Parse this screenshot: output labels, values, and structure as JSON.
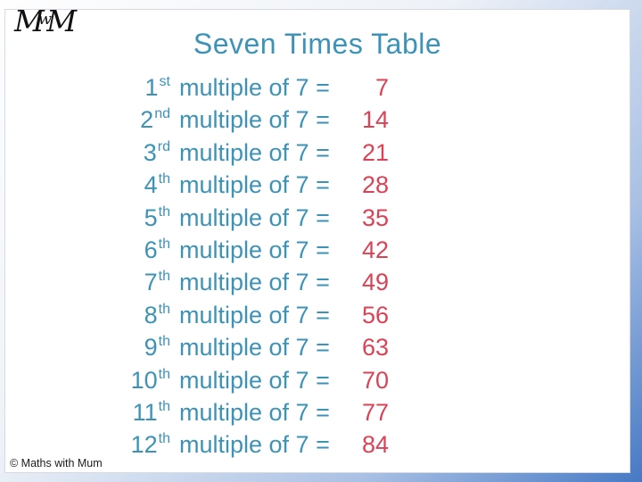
{
  "colors": {
    "teal": "#3c93b7",
    "red": "#da4355",
    "frame_blue": "#4679c4"
  },
  "logo": {
    "part1": "M",
    "part2": "w",
    "part3": "M"
  },
  "title": "Seven Times Table",
  "table": {
    "rows": [
      {
        "ordinal": "1",
        "suffix": "st",
        "label": "multiple of 7 =",
        "value": "7"
      },
      {
        "ordinal": "2",
        "suffix": "nd",
        "label": "multiple of 7 =",
        "value": "14"
      },
      {
        "ordinal": "3",
        "suffix": "rd",
        "label": "multiple of 7 =",
        "value": "21"
      },
      {
        "ordinal": "4",
        "suffix": "th",
        "label": "multiple of 7 =",
        "value": "28"
      },
      {
        "ordinal": "5",
        "suffix": "th",
        "label": "multiple of 7 =",
        "value": "35"
      },
      {
        "ordinal": "6",
        "suffix": "th",
        "label": "multiple of 7 =",
        "value": "42"
      },
      {
        "ordinal": "7",
        "suffix": "th",
        "label": "multiple of 7 =",
        "value": "49"
      },
      {
        "ordinal": "8",
        "suffix": "th",
        "label": "multiple of 7 =",
        "value": "56"
      },
      {
        "ordinal": "9",
        "suffix": "th",
        "label": "multiple of 7 =",
        "value": "63"
      },
      {
        "ordinal": "10",
        "suffix": "th",
        "label": "multiple of 7 =",
        "value": "70"
      },
      {
        "ordinal": "11",
        "suffix": "th",
        "label": "multiple of 7 =",
        "value": "77"
      },
      {
        "ordinal": "12",
        "suffix": "th",
        "label": "multiple of 7 =",
        "value": "84"
      }
    ]
  },
  "copyright": "© Maths with Mum"
}
